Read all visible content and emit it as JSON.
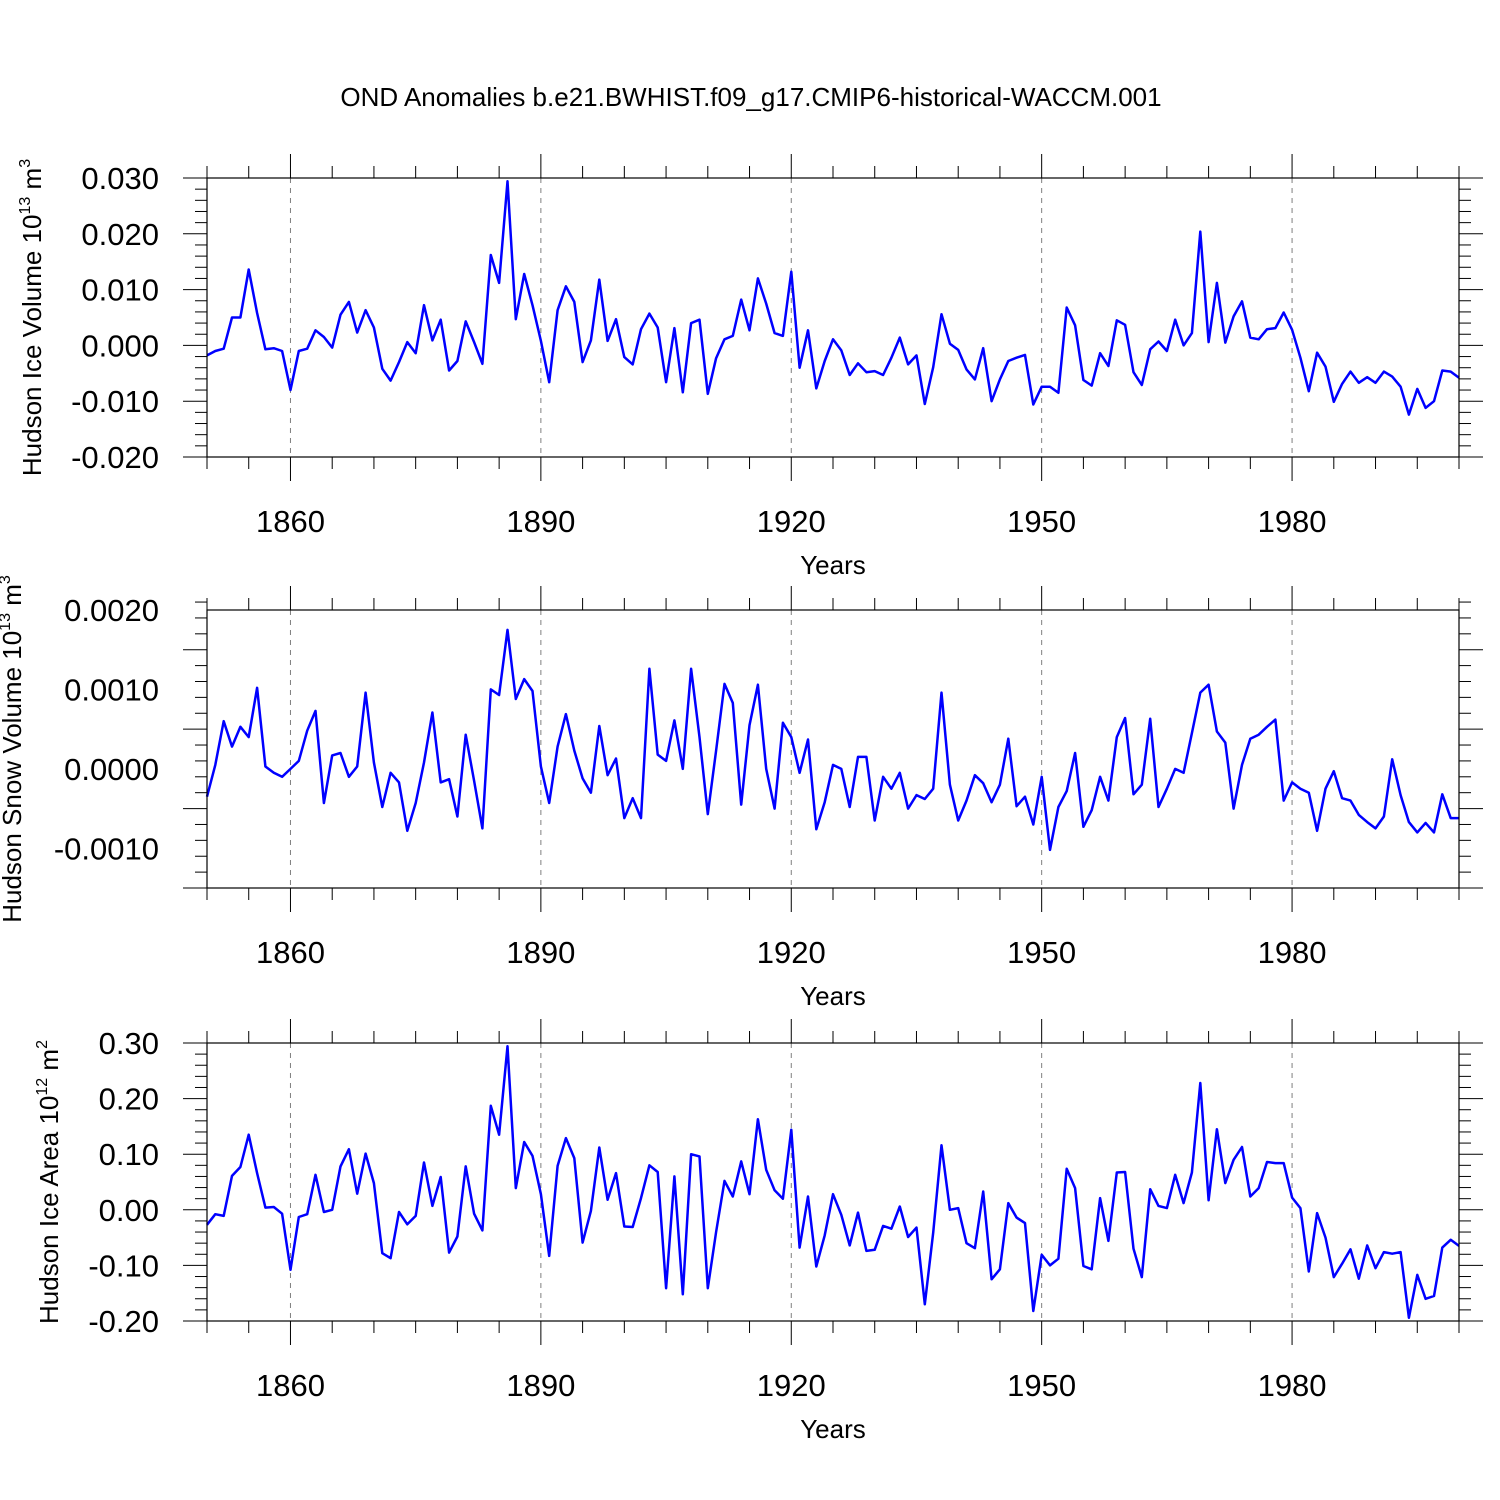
{
  "title": "OND Anomalies b.e21.BWHIST.f09_g17.CMIP6-historical-WACCM.001",
  "colors": {
    "line": "#0000ff",
    "axis": "#000000",
    "grid": "#7f7f7f",
    "background": "#ffffff"
  },
  "chart_data": [
    {
      "type": "line",
      "name": "ice-volume",
      "ylabel": "Hudson Ice Volume",
      "yunit_base": "10",
      "yunit_exp": "13",
      "yunit_tail": " m",
      "yunit_tail_exp": "3",
      "xlabel": "Years",
      "xlim": [
        1850,
        2000
      ],
      "ylim": [
        -0.02,
        0.03
      ],
      "xticks": [
        1860,
        1890,
        1920,
        1950,
        1980
      ],
      "yticks": [
        0.03,
        0.02,
        0.01,
        0.0,
        -0.01,
        -0.02
      ],
      "ytick_labels": [
        "0.030",
        "0.020",
        "0.010",
        "0.000",
        "-0.010",
        "-0.020"
      ],
      "x_start": 1850,
      "x_step": 1,
      "values": [
        -0.0018,
        -0.001,
        -0.0006,
        0.005,
        0.005,
        0.0136,
        0.0058,
        -0.0007,
        -0.0005,
        -0.001,
        -0.008,
        -0.001,
        -0.0006,
        0.0027,
        0.0015,
        -0.0004,
        0.0055,
        0.0078,
        0.0023,
        0.0063,
        0.0032,
        -0.0042,
        -0.0063,
        -0.003,
        0.0006,
        -0.0014,
        0.0072,
        0.0009,
        0.0046,
        -0.0045,
        -0.0028,
        0.0043,
        0.0006,
        -0.0033,
        0.0162,
        0.0112,
        0.0294,
        0.0047,
        0.0128,
        0.0072,
        0.0008,
        -0.0066,
        0.0063,
        0.0106,
        0.0078,
        -0.003,
        0.0009,
        0.0118,
        0.0008,
        0.0047,
        -0.0021,
        -0.0034,
        0.0029,
        0.0057,
        0.0032,
        -0.0066,
        0.0031,
        -0.0084,
        0.004,
        0.0046,
        -0.0087,
        -0.0023,
        0.0011,
        0.0017,
        0.0082,
        0.0027,
        0.012,
        0.0075,
        0.0022,
        0.0017,
        0.0132,
        -0.004,
        0.0027,
        -0.0077,
        -0.0028,
        0.0011,
        -0.0009,
        -0.0053,
        -0.0032,
        -0.0048,
        -0.0046,
        -0.0053,
        -0.0022,
        0.0014,
        -0.0034,
        -0.0018,
        -0.0105,
        -0.0039,
        0.0056,
        0.0003,
        -0.0008,
        -0.0043,
        -0.0061,
        -0.0005,
        -0.01,
        -0.0061,
        -0.0028,
        -0.0022,
        -0.0017,
        -0.0106,
        -0.0074,
        -0.0074,
        -0.0085,
        0.0068,
        0.0036,
        -0.0062,
        -0.0072,
        -0.0014,
        -0.0037,
        0.0045,
        0.0037,
        -0.0048,
        -0.0071,
        -0.0007,
        0.0007,
        -0.001,
        0.0046,
        0.0,
        0.0022,
        0.0204,
        0.0006,
        0.0112,
        0.0005,
        0.0052,
        0.0079,
        0.0014,
        0.0011,
        0.0029,
        0.0031,
        0.0059,
        0.0028,
        -0.0022,
        -0.0082,
        -0.0013,
        -0.0038,
        -0.0101,
        -0.0069,
        -0.0047,
        -0.0067,
        -0.0057,
        -0.0067,
        -0.0047,
        -0.0056,
        -0.0074,
        -0.0124,
        -0.0078,
        -0.0112,
        -0.01,
        -0.0045,
        -0.0047,
        -0.0058
      ]
    },
    {
      "type": "line",
      "name": "snow-volume",
      "ylabel": "Hudson Snow Volume",
      "yunit_base": "10",
      "yunit_exp": "13",
      "yunit_tail": " m",
      "yunit_tail_exp": "3",
      "xlabel": "Years",
      "xlim": [
        1850,
        2000
      ],
      "ylim": [
        -0.0015,
        0.002
      ],
      "xticks": [
        1860,
        1890,
        1920,
        1950,
        1980
      ],
      "yticks": [
        0.002,
        0.001,
        0.0,
        -0.001
      ],
      "ytick_labels": [
        "0.0020",
        "0.0010",
        "0.0000",
        "-0.0010"
      ],
      "x_start": 1850,
      "x_step": 1,
      "values": [
        -0.00035,
        5e-05,
        0.0006,
        0.00028,
        0.00053,
        0.0004,
        0.00102,
        3e-05,
        -5e-05,
        -0.0001,
        0.0,
        0.0001,
        0.00048,
        0.00073,
        -0.00043,
        0.00017,
        0.0002,
        -0.0001,
        3e-05,
        0.00096,
        8e-05,
        -0.00048,
        -5e-05,
        -0.00017,
        -0.00078,
        -0.00043,
        8e-05,
        0.00071,
        -0.00017,
        -0.00013,
        -0.0006,
        0.00043,
        -0.00015,
        -0.00075,
        0.001,
        0.00093,
        0.00175,
        0.00088,
        0.00113,
        0.00098,
        3e-05,
        -0.00043,
        0.00028,
        0.00069,
        0.00023,
        -0.00012,
        -0.0003,
        0.00054,
        -8e-05,
        0.00013,
        -0.00062,
        -0.00037,
        -0.00062,
        0.00126,
        0.00018,
        0.0001,
        0.00061,
        0.0,
        0.00126,
        0.0004,
        -0.00057,
        0.00023,
        0.00107,
        0.00083,
        -0.00045,
        0.00055,
        0.00106,
        0.0,
        -0.0005,
        0.00058,
        0.0004,
        -5e-05,
        0.00037,
        -0.00076,
        -0.00042,
        5e-05,
        0.0,
        -0.00048,
        0.00015,
        0.00015,
        -0.00065,
        -0.0001,
        -0.00025,
        -5e-05,
        -0.0005,
        -0.00033,
        -0.00038,
        -0.00025,
        0.00096,
        -0.0002,
        -0.00065,
        -0.0004,
        -8e-05,
        -0.00018,
        -0.00042,
        -0.0002,
        0.00038,
        -0.00047,
        -0.00035,
        -0.0007,
        -0.0001,
        -0.00102,
        -0.00048,
        -0.00028,
        0.0002,
        -0.00073,
        -0.00052,
        -0.0001,
        -0.0004,
        0.0004,
        0.00064,
        -0.00032,
        -0.0002,
        0.00063,
        -0.00048,
        -0.00025,
        0.0,
        -5e-05,
        0.00045,
        0.00096,
        0.00106,
        0.00047,
        0.00033,
        -0.0005,
        5e-05,
        0.00038,
        0.00043,
        0.00053,
        0.00062,
        -0.0004,
        -0.00017,
        -0.00025,
        -0.0003,
        -0.00078,
        -0.00025,
        -3e-05,
        -0.00037,
        -0.0004,
        -0.00058,
        -0.00067,
        -0.00075,
        -0.0006,
        0.00012,
        -0.00033,
        -0.00067,
        -0.0008,
        -0.00068,
        -0.0008,
        -0.00032,
        -0.00062,
        -0.00062
      ]
    },
    {
      "type": "line",
      "name": "ice-area",
      "ylabel": "Hudson Ice Area",
      "yunit_base": "10",
      "yunit_exp": "12",
      "yunit_tail": " m",
      "yunit_tail_exp": "2",
      "xlabel": "Years",
      "xlim": [
        1850,
        2000
      ],
      "ylim": [
        -0.2,
        0.3
      ],
      "xticks": [
        1860,
        1890,
        1920,
        1950,
        1980
      ],
      "yticks": [
        0.3,
        0.2,
        0.1,
        0.0,
        -0.1,
        -0.2
      ],
      "ytick_labels": [
        "0.30",
        "0.20",
        "0.10",
        "0.00",
        "-0.10",
        "-0.20"
      ],
      "x_start": 1850,
      "x_step": 1,
      "values": [
        -0.027,
        -0.008,
        -0.011,
        0.061,
        0.077,
        0.135,
        0.066,
        0.004,
        0.005,
        -0.007,
        -0.108,
        -0.013,
        -0.008,
        0.063,
        -0.004,
        0.0,
        0.078,
        0.109,
        0.029,
        0.101,
        0.048,
        -0.078,
        -0.087,
        -0.004,
        -0.026,
        -0.011,
        0.085,
        0.007,
        0.059,
        -0.077,
        -0.048,
        0.078,
        -0.007,
        -0.037,
        0.187,
        0.135,
        0.294,
        0.039,
        0.122,
        0.097,
        0.028,
        -0.083,
        0.079,
        0.129,
        0.093,
        -0.059,
        -0.002,
        0.112,
        0.018,
        0.066,
        -0.03,
        -0.031,
        0.021,
        0.08,
        0.068,
        -0.141,
        0.06,
        -0.152,
        0.1,
        0.096,
        -0.141,
        -0.04,
        0.052,
        0.024,
        0.087,
        0.028,
        0.163,
        0.072,
        0.035,
        0.02,
        0.144,
        -0.068,
        0.024,
        -0.102,
        -0.046,
        0.028,
        -0.009,
        -0.064,
        -0.005,
        -0.074,
        -0.072,
        -0.029,
        -0.034,
        0.006,
        -0.049,
        -0.032,
        -0.17,
        -0.041,
        0.116,
        0.0,
        0.003,
        -0.06,
        -0.069,
        0.033,
        -0.125,
        -0.107,
        0.012,
        -0.014,
        -0.024,
        -0.182,
        -0.081,
        -0.1,
        -0.088,
        0.074,
        0.039,
        -0.101,
        -0.107,
        0.021,
        -0.056,
        0.067,
        0.068,
        -0.07,
        -0.121,
        0.037,
        0.007,
        0.003,
        0.063,
        0.012,
        0.067,
        0.228,
        0.017,
        0.145,
        0.048,
        0.09,
        0.113,
        0.024,
        0.039,
        0.086,
        0.084,
        0.084,
        0.022,
        0.003,
        -0.111,
        -0.006,
        -0.05,
        -0.121,
        -0.097,
        -0.071,
        -0.124,
        -0.064,
        -0.105,
        -0.076,
        -0.079,
        -0.076,
        -0.194,
        -0.117,
        -0.16,
        -0.155,
        -0.068,
        -0.054,
        -0.065
      ]
    }
  ]
}
